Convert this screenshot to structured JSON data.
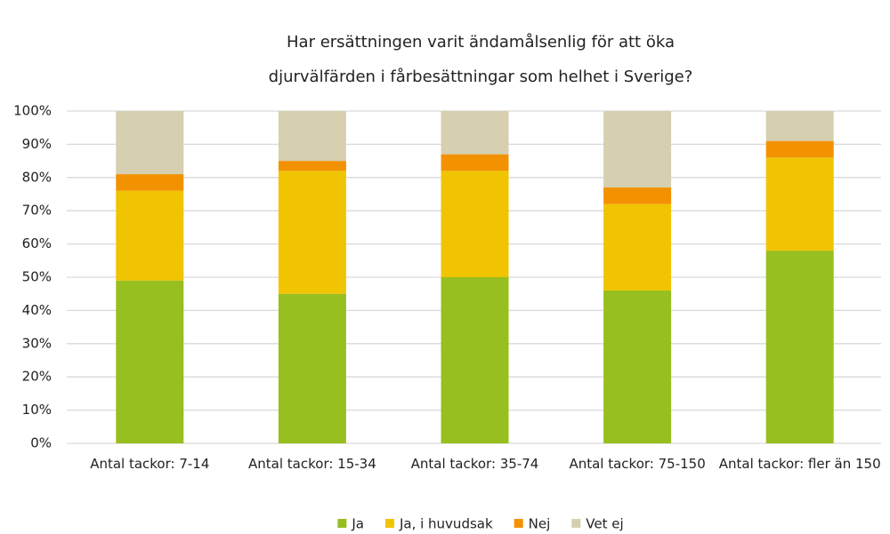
{
  "chart_data": {
    "type": "stacked_bar",
    "title": [
      "Har ersättningen varit ändamålsenlig för att öka",
      "djurvälfärden i fårbesättningar som helhet i Sverige?"
    ],
    "categories": [
      "Antal tackor: 7-14",
      "Antal tackor: 15-34",
      "Antal tackor: 35-74",
      "Antal tackor: 75-150",
      "Antal tackor: fler än 150"
    ],
    "series": [
      {
        "name": "Ja",
        "color": "#97bf1f",
        "values": [
          49,
          45,
          50,
          46,
          58
        ]
      },
      {
        "name": "Ja, i huvudsak",
        "color": "#f0c400",
        "values": [
          27,
          37,
          32,
          26,
          28
        ]
      },
      {
        "name": "Nej",
        "color": "#f39200",
        "values": [
          5,
          3,
          5,
          5,
          5
        ]
      },
      {
        "name": "Vet ej",
        "color": "#d6cfb0",
        "values": [
          19,
          15,
          13,
          23,
          9
        ]
      }
    ],
    "ylim": [
      0,
      100
    ],
    "yticks": [
      {
        "value": 0,
        "label": "0%"
      },
      {
        "value": 10,
        "label": "10%"
      },
      {
        "value": 20,
        "label": "20%"
      },
      {
        "value": 30,
        "label": "30%"
      },
      {
        "value": 40,
        "label": "40%"
      },
      {
        "value": 50,
        "label": "50%"
      },
      {
        "value": 60,
        "label": "60%"
      },
      {
        "value": 70,
        "label": "70%"
      },
      {
        "value": 80,
        "label": "80%"
      },
      {
        "value": 90,
        "label": "90%"
      },
      {
        "value": 100,
        "label": "100%"
      }
    ],
    "grid": true,
    "legend": "bottom"
  }
}
